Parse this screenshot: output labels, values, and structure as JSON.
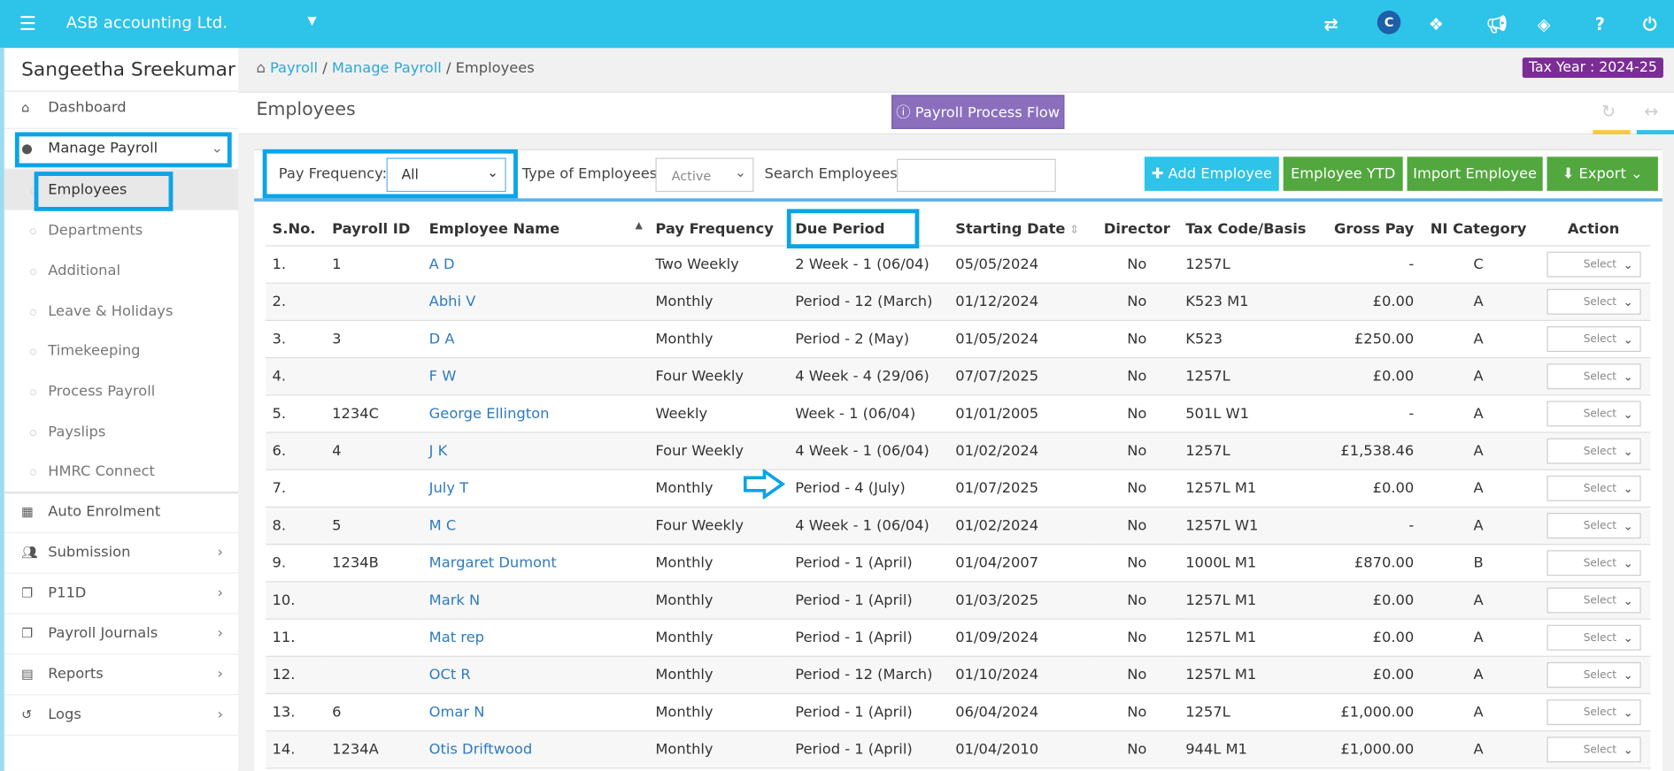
{
  "topbar": {
    "company": "ASB accounting Ltd.",
    "icons": [
      "menu-icon",
      "switch-icon",
      "c-logo-icon",
      "cubes-icon",
      "bullhorn-icon",
      "ticket-icon",
      "help-icon",
      "power-icon"
    ]
  },
  "sidebar": {
    "user": "Sangeetha Sreekumar",
    "items": [
      {
        "label": "Dashboard",
        "icon": "home-icon"
      },
      {
        "label": "Manage Payroll",
        "icon": "user-icon"
      }
    ],
    "sub": [
      "Employees",
      "Departments",
      "Additional",
      "Leave & Holidays",
      "Timekeeping",
      "Process Payroll",
      "Payslips",
      "HMRC Connect"
    ],
    "lower": [
      {
        "label": "Auto Enrolment",
        "icon": "grid-icon"
      },
      {
        "label": "Submission",
        "icon": "users-icon"
      },
      {
        "label": "P11D",
        "icon": "copy-icon"
      },
      {
        "label": "Payroll Journals",
        "icon": "copy-icon"
      },
      {
        "label": "Reports",
        "icon": "report-icon"
      },
      {
        "label": "Logs",
        "icon": "history-icon"
      }
    ]
  },
  "breadcrumb": {
    "items": [
      "Payroll",
      "Manage Payroll",
      "Employees"
    ],
    "sep": "/"
  },
  "tax_year": "Tax Year : 2024-25",
  "page_title": "Employees",
  "process_flow": "Payroll Process Flow",
  "filters": {
    "pay_frequency_label": "Pay Frequency:",
    "pay_frequency_value": "All",
    "type_label": "Type of Employees:",
    "type_value": "Active",
    "search_label": "Search Employees:",
    "search_value": ""
  },
  "buttons": {
    "add": "Add Employee",
    "ytd": "Employee YTD",
    "import": "Import Employee",
    "export": "Export"
  },
  "colors": {
    "topbar": "#2ec3e8",
    "add": "#2ec3e8",
    "green": "#52a83e",
    "purple": "#8b6fbd",
    "tax": "#7b2d95",
    "highlight": "#0aa4e8"
  },
  "table": {
    "headers": [
      "S.No.",
      "Payroll ID",
      "Employee Name",
      "Pay Frequency",
      "Due Period",
      "Starting Date",
      "Director",
      "Tax Code/Basis",
      "Gross Pay",
      "NI Category",
      "Action"
    ],
    "action_placeholder": "Select",
    "rows": [
      [
        "1.",
        "1",
        "A D",
        "Two Weekly",
        "2 Week - 1 (06/04)",
        "05/05/2024",
        "No",
        "1257L",
        "-",
        "C"
      ],
      [
        "2.",
        "",
        "Abhi V",
        "Monthly",
        "Period - 12 (March)",
        "01/12/2024",
        "No",
        "K523 M1",
        "£0.00",
        "A"
      ],
      [
        "3.",
        "3",
        "D A",
        "Monthly",
        "Period - 2 (May)",
        "01/05/2024",
        "No",
        "K523",
        "£250.00",
        "A"
      ],
      [
        "4.",
        "",
        "F W",
        "Four Weekly",
        "4 Week - 4 (29/06)",
        "07/07/2025",
        "No",
        "1257L",
        "£0.00",
        "A"
      ],
      [
        "5.",
        "1234C",
        "George Ellington",
        "Weekly",
        "Week - 1 (06/04)",
        "01/01/2005",
        "No",
        "501L W1",
        "-",
        "A"
      ],
      [
        "6.",
        "4",
        "J K",
        "Four Weekly",
        "4 Week - 1 (06/04)",
        "01/02/2024",
        "No",
        "1257L",
        "£1,538.46",
        "A"
      ],
      [
        "7.",
        "",
        "July T",
        "Monthly",
        "Period - 4 (July)",
        "01/07/2025",
        "No",
        "1257L M1",
        "£0.00",
        "A"
      ],
      [
        "8.",
        "5",
        "M C",
        "Four Weekly",
        "4 Week - 1 (06/04)",
        "01/02/2024",
        "No",
        "1257L W1",
        "-",
        "A"
      ],
      [
        "9.",
        "1234B",
        "Margaret Dumont",
        "Monthly",
        "Period - 1 (April)",
        "01/04/2007",
        "No",
        "1000L M1",
        "£870.00",
        "B"
      ],
      [
        "10.",
        "",
        "Mark N",
        "Monthly",
        "Period - 1 (April)",
        "01/03/2025",
        "No",
        "1257L M1",
        "£0.00",
        "A"
      ],
      [
        "11.",
        "",
        "Mat rep",
        "Monthly",
        "Period - 1 (April)",
        "01/09/2024",
        "No",
        "1257L M1",
        "£0.00",
        "A"
      ],
      [
        "12.",
        "",
        "OCt R",
        "Monthly",
        "Period - 12 (March)",
        "01/10/2024",
        "No",
        "1257L M1",
        "£0.00",
        "A"
      ],
      [
        "13.",
        "6",
        "Omar N",
        "Monthly",
        "Period - 1 (April)",
        "06/04/2024",
        "No",
        "1257L",
        "£1,000.00",
        "A"
      ],
      [
        "14.",
        "1234A",
        "Otis Driftwood",
        "Monthly",
        "Period - 1 (April)",
        "01/04/2010",
        "No",
        "944L M1",
        "£1,000.00",
        "A"
      ]
    ]
  }
}
